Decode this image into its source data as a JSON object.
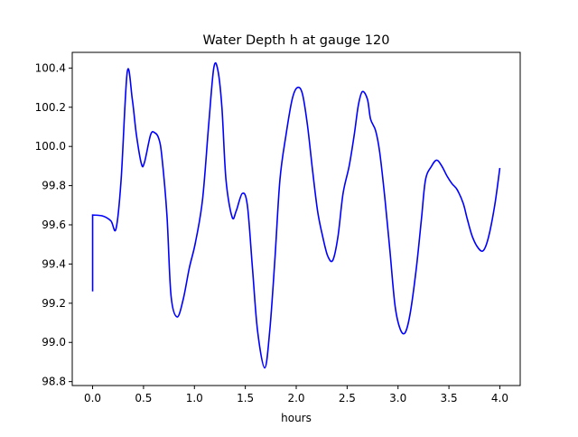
{
  "chart_data": {
    "type": "line",
    "title": "Water Depth h at gauge 120",
    "xlabel": "hours",
    "ylabel": "",
    "xlim": [
      -0.2,
      4.2
    ],
    "ylim": [
      98.78,
      100.48
    ],
    "xticks": [
      "0.0",
      "0.5",
      "1.0",
      "1.5",
      "2.0",
      "2.5",
      "3.0",
      "3.5",
      "4.0"
    ],
    "yticks": [
      "98.8",
      "99.0",
      "99.2",
      "99.4",
      "99.6",
      "99.8",
      "100.0",
      "100.2",
      "100.4"
    ],
    "grid": false,
    "line_color": "#0000ff",
    "series": [
      {
        "name": "h",
        "x": [
          0,
          0,
          0.1,
          0.18,
          0.23,
          0.28,
          0.34,
          0.39,
          0.43,
          0.48,
          0.51,
          0.57,
          0.61,
          0.65,
          0.68,
          0.73,
          0.77,
          0.83,
          0.89,
          0.95,
          1.01,
          1.08,
          1.14,
          1.19,
          1.23,
          1.27,
          1.31,
          1.37,
          1.41,
          1.47,
          1.52,
          1.57,
          1.62,
          1.69,
          1.74,
          1.79,
          1.84,
          1.9,
          1.96,
          2.01,
          2.06,
          2.11,
          2.16,
          2.21,
          2.26,
          2.31,
          2.36,
          2.41,
          2.46,
          2.52,
          2.57,
          2.61,
          2.65,
          2.7,
          2.73,
          2.78,
          2.82,
          2.87,
          2.92,
          2.97,
          3.02,
          3.07,
          3.12,
          3.18,
          3.23,
          3.27,
          3.33,
          3.38,
          3.43,
          3.48,
          3.53,
          3.58,
          3.64,
          3.68,
          3.73,
          3.79,
          3.84,
          3.89,
          3.95,
          4.0
        ],
        "y": [
          99.26,
          99.65,
          99.645,
          99.62,
          99.58,
          99.83,
          100.38,
          100.24,
          100.06,
          99.91,
          99.92,
          100.06,
          100.07,
          100.04,
          99.95,
          99.65,
          99.24,
          99.13,
          99.22,
          99.38,
          99.51,
          99.73,
          100.11,
          100.4,
          100.39,
          100.2,
          99.83,
          99.64,
          99.67,
          99.76,
          99.7,
          99.38,
          99.06,
          98.87,
          99.06,
          99.42,
          99.83,
          100.06,
          100.24,
          100.3,
          100.27,
          100.11,
          99.88,
          99.67,
          99.54,
          99.44,
          99.42,
          99.54,
          99.76,
          99.9,
          100.06,
          100.21,
          100.28,
          100.24,
          100.14,
          100.08,
          99.97,
          99.74,
          99.47,
          99.19,
          99.07,
          99.05,
          99.15,
          99.38,
          99.63,
          99.83,
          99.9,
          99.93,
          99.9,
          99.85,
          99.81,
          99.78,
          99.71,
          99.63,
          99.54,
          99.48,
          99.47,
          99.54,
          99.7,
          99.89
        ]
      }
    ]
  }
}
